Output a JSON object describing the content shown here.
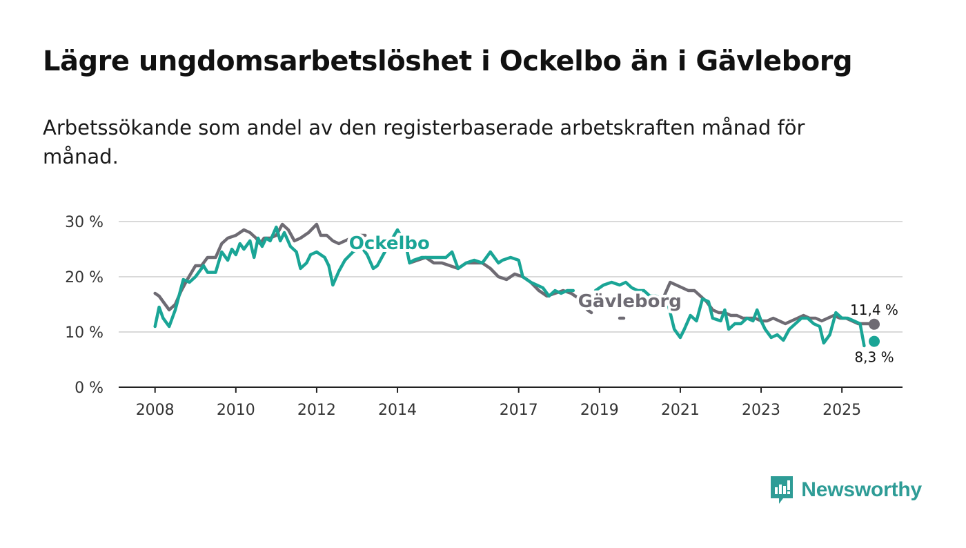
{
  "header": {
    "title": "Lägre ungdomsarbetslöshet i Ockelbo än i Gävleborg",
    "subtitle": "Arbetssökande som andel av den registerbaserade arbetskraften månad för månad."
  },
  "brand": {
    "name": "Newsworthy",
    "icon": "newsworthy-logo-icon",
    "color": "#2e9c96"
  },
  "colors": {
    "ockelbo": "#1aa596",
    "gavleborg": "#6e6b73",
    "grid": "#d9d9d9",
    "axis": "#222222"
  },
  "chart_data": {
    "type": "line",
    "title": "Lägre ungdomsarbetslöshet i Ockelbo än i Gävleborg",
    "ylabel": "",
    "xlabel": "",
    "ylim": [
      0,
      30
    ],
    "xlim": [
      2007.1,
      2026.5
    ],
    "yticks": [
      0,
      10,
      20,
      30
    ],
    "ytick_labels": [
      "0 %",
      "10 %",
      "20 %",
      "30 %"
    ],
    "xticks": [
      2008,
      2010,
      2012,
      2014,
      2017,
      2019,
      2021,
      2023,
      2025
    ],
    "xtick_labels": [
      "2008",
      "2010",
      "2012",
      "2014",
      "2017",
      "2019",
      "2021",
      "2023",
      "2025"
    ],
    "series": [
      {
        "name": "Ockelbo",
        "color": "#1aa596",
        "end_label": "8,3 %",
        "points": [
          [
            2008.0,
            11.0
          ],
          [
            2008.1,
            14.5
          ],
          [
            2008.2,
            12.5
          ],
          [
            2008.35,
            11.0
          ],
          [
            2008.5,
            14.0
          ],
          [
            2008.7,
            19.5
          ],
          [
            2008.85,
            19.0
          ],
          [
            2009.0,
            20.0
          ],
          [
            2009.2,
            22.0
          ],
          [
            2009.3,
            20.8
          ],
          [
            2009.5,
            20.8
          ],
          [
            2009.65,
            24.5
          ],
          [
            2009.8,
            23.0
          ],
          [
            2009.9,
            25.0
          ],
          [
            2010.0,
            24.0
          ],
          [
            2010.1,
            26.0
          ],
          [
            2010.2,
            25.0
          ],
          [
            2010.35,
            26.5
          ],
          [
            2010.45,
            23.5
          ],
          [
            2010.55,
            27.0
          ],
          [
            2010.65,
            25.5
          ],
          [
            2010.75,
            27.0
          ],
          [
            2010.85,
            26.5
          ],
          [
            2011.0,
            29.0
          ],
          [
            2011.1,
            26.5
          ],
          [
            2011.2,
            28.0
          ],
          [
            2011.35,
            25.5
          ],
          [
            2011.5,
            24.5
          ],
          [
            2011.6,
            21.5
          ],
          [
            2011.75,
            22.5
          ],
          [
            2011.85,
            24.0
          ],
          [
            2012.0,
            24.5
          ],
          [
            2012.2,
            23.5
          ],
          [
            2012.3,
            22.0
          ],
          [
            2012.4,
            18.5
          ],
          [
            2012.55,
            21.0
          ],
          [
            2012.7,
            23.0
          ],
          [
            2012.9,
            24.5
          ],
          [
            2013.1,
            25.5
          ],
          [
            2013.25,
            24.0
          ],
          [
            2013.4,
            21.5
          ],
          [
            2013.5,
            22.0
          ],
          [
            2013.65,
            24.0
          ],
          [
            2013.8,
            26.0
          ],
          [
            2014.0,
            28.5
          ],
          [
            2014.2,
            26.0
          ],
          [
            2014.3,
            22.5
          ],
          [
            2014.4,
            23.0
          ],
          [
            2014.6,
            23.5
          ],
          [
            2014.8,
            23.5
          ],
          [
            2015.0,
            23.5
          ],
          [
            2015.2,
            23.5
          ],
          [
            2015.35,
            24.5
          ],
          [
            2015.5,
            21.5
          ],
          [
            2015.7,
            22.5
          ],
          [
            2015.9,
            23.0
          ],
          [
            2016.1,
            22.5
          ],
          [
            2016.3,
            24.5
          ],
          [
            2016.5,
            22.5
          ],
          [
            2016.6,
            23.0
          ],
          [
            2016.8,
            23.5
          ],
          [
            2017.0,
            23.0
          ],
          [
            2017.1,
            20.0
          ],
          [
            2017.3,
            19.0
          ],
          [
            2017.45,
            18.5
          ],
          [
            2017.6,
            18.0
          ],
          [
            2017.75,
            16.5
          ],
          [
            2017.9,
            17.5
          ],
          [
            2018.05,
            17.0
          ],
          [
            2018.2,
            17.5
          ],
          [
            2018.35,
            17.5
          ]
        ]
      },
      {
        "name": "Ockelbo",
        "color": "#1aa596",
        "segment": 2,
        "points": [
          [
            2018.9,
            17.5
          ],
          [
            2019.1,
            18.5
          ],
          [
            2019.3,
            19.0
          ],
          [
            2019.5,
            18.5
          ],
          [
            2019.65,
            19.0
          ],
          [
            2019.8,
            18.0
          ],
          [
            2019.95,
            17.5
          ],
          [
            2020.1,
            17.5
          ],
          [
            2020.25,
            16.5
          ],
          [
            2020.4,
            16.5
          ],
          [
            2020.55,
            16.0
          ],
          [
            2020.65,
            16.5
          ],
          [
            2020.85,
            10.5
          ],
          [
            2021.0,
            9.0
          ],
          [
            2021.1,
            10.5
          ],
          [
            2021.25,
            13.0
          ],
          [
            2021.4,
            12.0
          ],
          [
            2021.55,
            16.0
          ],
          [
            2021.7,
            15.5
          ],
          [
            2021.8,
            12.5
          ],
          [
            2022.0,
            12.0
          ],
          [
            2022.1,
            14.0
          ],
          [
            2022.2,
            10.5
          ],
          [
            2022.35,
            11.5
          ],
          [
            2022.5,
            11.5
          ],
          [
            2022.65,
            12.5
          ],
          [
            2022.8,
            12.0
          ],
          [
            2022.9,
            14.0
          ],
          [
            2023.0,
            12.0
          ],
          [
            2023.1,
            10.5
          ],
          [
            2023.25,
            9.0
          ],
          [
            2023.4,
            9.5
          ],
          [
            2023.55,
            8.5
          ],
          [
            2023.7,
            10.5
          ],
          [
            2023.85,
            11.5
          ],
          [
            2024.0,
            12.5
          ],
          [
            2024.15,
            12.5
          ],
          [
            2024.3,
            11.5
          ],
          [
            2024.45,
            11.0
          ],
          [
            2024.55,
            8.0
          ],
          [
            2024.7,
            9.5
          ],
          [
            2024.85,
            13.5
          ],
          [
            2025.0,
            12.5
          ],
          [
            2025.15,
            12.5
          ],
          [
            2025.3,
            12.0
          ],
          [
            2025.45,
            11.5
          ],
          [
            2025.55,
            7.5
          ]
        ]
      },
      {
        "name": "Gävleborg",
        "color": "#6e6b73",
        "end_label": "11,4 %",
        "points": [
          [
            2008.0,
            17.0
          ],
          [
            2008.1,
            16.5
          ],
          [
            2008.2,
            15.5
          ],
          [
            2008.35,
            14.0
          ],
          [
            2008.5,
            15.0
          ],
          [
            2008.65,
            17.5
          ],
          [
            2008.8,
            19.5
          ],
          [
            2009.0,
            22.0
          ],
          [
            2009.15,
            22.0
          ],
          [
            2009.3,
            23.5
          ],
          [
            2009.5,
            23.5
          ],
          [
            2009.65,
            26.0
          ],
          [
            2009.8,
            27.0
          ],
          [
            2010.0,
            27.5
          ],
          [
            2010.2,
            28.5
          ],
          [
            2010.35,
            28.0
          ],
          [
            2010.5,
            27.0
          ],
          [
            2010.6,
            26.0
          ],
          [
            2010.7,
            27.0
          ],
          [
            2010.85,
            27.0
          ],
          [
            2011.0,
            27.5
          ],
          [
            2011.15,
            29.5
          ],
          [
            2011.3,
            28.5
          ],
          [
            2011.45,
            26.5
          ],
          [
            2011.6,
            27.0
          ],
          [
            2011.8,
            28.0
          ],
          [
            2012.0,
            29.5
          ],
          [
            2012.1,
            27.5
          ],
          [
            2012.25,
            27.5
          ],
          [
            2012.4,
            26.5
          ],
          [
            2012.55,
            26.0
          ],
          [
            2012.7,
            26.5
          ],
          [
            2012.85,
            27.0
          ],
          [
            2013.0,
            27.5
          ],
          [
            2013.2,
            27.5
          ]
        ]
      },
      {
        "name": "Gävleborg",
        "color": "#6e6b73",
        "segment": 2,
        "points": [
          [
            2014.3,
            22.5
          ],
          [
            2014.5,
            23.0
          ],
          [
            2014.7,
            23.5
          ],
          [
            2014.9,
            22.5
          ],
          [
            2015.1,
            22.5
          ],
          [
            2015.3,
            22.0
          ],
          [
            2015.5,
            21.5
          ],
          [
            2015.7,
            22.5
          ],
          [
            2015.9,
            22.5
          ],
          [
            2016.1,
            22.5
          ],
          [
            2016.3,
            21.5
          ],
          [
            2016.5,
            20.0
          ],
          [
            2016.7,
            19.5
          ],
          [
            2016.9,
            20.5
          ],
          [
            2017.1,
            20.0
          ],
          [
            2017.3,
            19.0
          ],
          [
            2017.5,
            17.5
          ],
          [
            2017.7,
            16.5
          ],
          [
            2017.9,
            17.0
          ],
          [
            2018.1,
            17.5
          ],
          [
            2018.3,
            17.0
          ],
          [
            2018.5,
            16.0
          ],
          [
            2018.7,
            14.0
          ],
          [
            2018.8,
            13.5
          ]
        ]
      },
      {
        "name": "Gävleborg",
        "color": "#6e6b73",
        "segment": 3,
        "points": [
          [
            2019.5,
            12.5
          ],
          [
            2019.6,
            12.5
          ]
        ]
      },
      {
        "name": "Gävleborg",
        "color": "#6e6b73",
        "segment": 4,
        "points": [
          [
            2020.6,
            16.5
          ],
          [
            2020.75,
            19.0
          ],
          [
            2020.9,
            18.5
          ],
          [
            2021.05,
            18.0
          ],
          [
            2021.2,
            17.5
          ],
          [
            2021.35,
            17.5
          ],
          [
            2021.5,
            16.5
          ],
          [
            2021.65,
            15.5
          ],
          [
            2021.8,
            14.0
          ],
          [
            2021.95,
            13.5
          ],
          [
            2022.1,
            13.5
          ],
          [
            2022.25,
            13.0
          ],
          [
            2022.4,
            13.0
          ],
          [
            2022.55,
            12.5
          ],
          [
            2022.7,
            12.5
          ],
          [
            2022.85,
            12.5
          ],
          [
            2023.0,
            12.0
          ],
          [
            2023.15,
            12.0
          ],
          [
            2023.3,
            12.5
          ],
          [
            2023.45,
            12.0
          ],
          [
            2023.6,
            11.5
          ],
          [
            2023.75,
            12.0
          ],
          [
            2023.9,
            12.5
          ],
          [
            2024.05,
            13.0
          ],
          [
            2024.2,
            12.5
          ],
          [
            2024.35,
            12.5
          ],
          [
            2024.5,
            12.0
          ],
          [
            2024.65,
            12.5
          ],
          [
            2024.8,
            13.0
          ],
          [
            2024.95,
            12.5
          ],
          [
            2025.1,
            12.5
          ],
          [
            2025.25,
            12.0
          ],
          [
            2025.4,
            11.5
          ],
          [
            2025.55,
            11.5
          ],
          [
            2025.65,
            11.5
          ],
          [
            2025.8,
            11.4
          ]
        ]
      }
    ],
    "end_points": [
      {
        "series": "Gävleborg",
        "x": 2025.8,
        "y": 11.4,
        "label": "11,4 %",
        "color": "#6e6b73"
      },
      {
        "series": "Ockelbo",
        "x": 2025.8,
        "y": 8.3,
        "label": "8,3 %",
        "color": "#1aa596"
      }
    ],
    "annotations": [
      {
        "text": "Ockelbo",
        "x": 2013.8,
        "y": 25.0,
        "color": "#1aa596"
      },
      {
        "text": "Gävleborg",
        "x": 2019.75,
        "y": 14.5,
        "color": "#6e6b73"
      }
    ]
  }
}
